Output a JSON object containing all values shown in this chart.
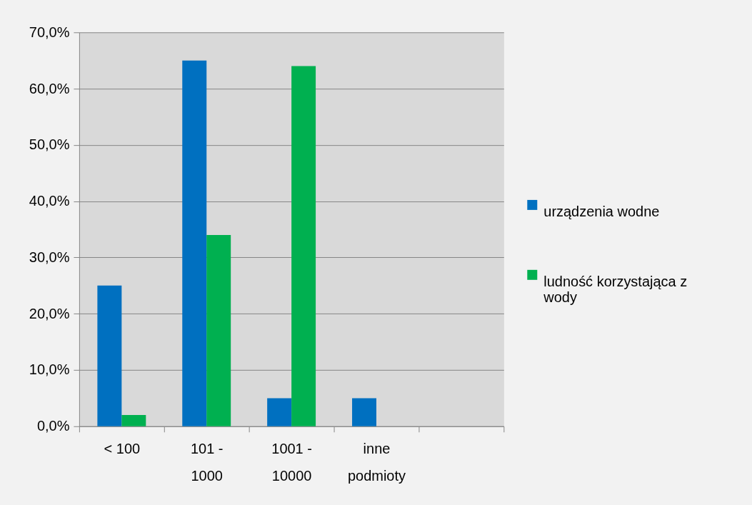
{
  "chart_data": {
    "type": "bar",
    "categories": [
      "< 100",
      "101 - 1000",
      "1001 - 10000",
      "inne podmioty",
      null
    ],
    "series": [
      {
        "name": "urządzenia wodne",
        "color": "#0070c0",
        "values": [
          25,
          65,
          5,
          5,
          null
        ]
      },
      {
        "name": "ludność korzystająca z wody",
        "color": "#00b050",
        "values": [
          2,
          34,
          64,
          null,
          null
        ]
      }
    ],
    "ylim": [
      0,
      70
    ],
    "yticks": [
      {
        "value": 0,
        "label": "0,0%"
      },
      {
        "value": 10,
        "label": "10,0%"
      },
      {
        "value": 20,
        "label": "20,0%"
      },
      {
        "value": 30,
        "label": "30,0%"
      },
      {
        "value": 40,
        "label": "40,0%"
      },
      {
        "value": 50,
        "label": "50,0%"
      },
      {
        "value": 60,
        "label": "60,0%"
      },
      {
        "value": 70,
        "label": "70,0%"
      }
    ],
    "grid": "y",
    "legend": "right"
  }
}
